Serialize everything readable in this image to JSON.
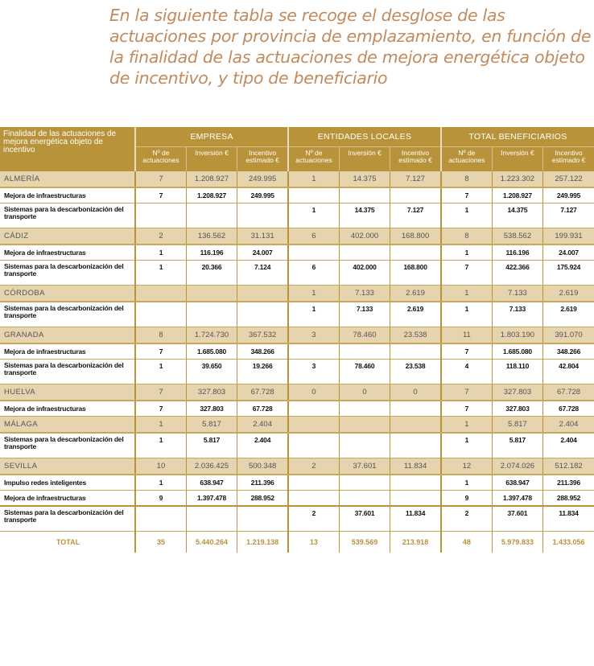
{
  "intro_text": "En la siguiente tabla se recoge el desglose de las actuaciones por provincia de emplazamiento, en función de la finalidad de las actuaciones de mejora energética objeto de incentivo, y tipo de beneficiario",
  "colors": {
    "header": "#b8933a",
    "province_row": "#e5d4ae",
    "intro_text": "#c38a5c",
    "total_text": "#b8933a"
  },
  "table": {
    "first_header": "Finalidad de las actuaciones de mejora energética objeto de incentivo",
    "groups": [
      "EMPRESA",
      "ENTIDADES LOCALES",
      "TOTAL BENEFICIARIOS"
    ],
    "sub_headers": [
      "Nº de actuaciones",
      "Inversión €",
      "Incentivo estimado €"
    ],
    "rows": [
      {
        "type": "prov",
        "label": "ALMERÍA",
        "v": [
          "7",
          "1.208.927",
          "249.995",
          "1",
          "14.375",
          "7.127",
          "8",
          "1.223.302",
          "257.122"
        ]
      },
      {
        "type": "item",
        "label": "Mejora de infraestructuras",
        "v": [
          "7",
          "1.208.927",
          "249.995",
          "",
          "",
          "",
          "7",
          "1.208.927",
          "249.995"
        ]
      },
      {
        "type": "item tall",
        "label": "Sistemas para la descarbonización del transporte",
        "v": [
          "",
          "",
          "",
          "1",
          "14.375",
          "7.127",
          "1",
          "14.375",
          "7.127"
        ]
      },
      {
        "type": "prov",
        "label": "CÁDIZ",
        "v": [
          "2",
          "136.562",
          "31.131",
          "6",
          "402.000",
          "168.800",
          "8",
          "538.562",
          "199.931"
        ]
      },
      {
        "type": "item",
        "label": "Mejora de infraestructuras",
        "v": [
          "1",
          "116.196",
          "24.007",
          "",
          "",
          "",
          "1",
          "116.196",
          "24.007"
        ]
      },
      {
        "type": "item tall",
        "label": "Sistemas para la descarbonización del transporte",
        "v": [
          "1",
          "20.366",
          "7.124",
          "6",
          "402.000",
          "168.800",
          "7",
          "422.366",
          "175.924"
        ]
      },
      {
        "type": "prov",
        "label": "CÓRDOBA",
        "v": [
          "",
          "",
          "",
          "1",
          "7.133",
          "2.619",
          "1",
          "7.133",
          "2.619"
        ]
      },
      {
        "type": "item tall",
        "label": "Sistemas para la descarbonización del transporte",
        "v": [
          "",
          "",
          "",
          "1",
          "7.133",
          "2.619",
          "1",
          "7.133",
          "2.619"
        ]
      },
      {
        "type": "prov",
        "label": "GRANADA",
        "v": [
          "8",
          "1.724.730",
          "367.532",
          "3",
          "78.460",
          "23.538",
          "11",
          "1.803.190",
          "391.070"
        ]
      },
      {
        "type": "item",
        "label": "Mejora de infraestructuras",
        "v": [
          "7",
          "1.685.080",
          "348.266",
          "",
          "",
          "",
          "7",
          "1.685.080",
          "348.266"
        ]
      },
      {
        "type": "item tall",
        "label": "Sistemas para la descarbonización del transporte",
        "v": [
          "1",
          "39.650",
          "19.266",
          "3",
          "78.460",
          "23.538",
          "4",
          "118.110",
          "42.804"
        ]
      },
      {
        "type": "prov",
        "label": "HUELVA",
        "v": [
          "7",
          "327.803",
          "67.728",
          "0",
          "0",
          "0",
          "7",
          "327.803",
          "67.728"
        ]
      },
      {
        "type": "item",
        "label": "Mejora de infraestructuras",
        "v": [
          "7",
          "327.803",
          "67.728",
          "",
          "",
          "",
          "7",
          "327.803",
          "67.728"
        ]
      },
      {
        "type": "prov",
        "label": "MÁLAGA",
        "v": [
          "1",
          "5.817",
          "2.404",
          "",
          "",
          "",
          "1",
          "5.817",
          "2.404"
        ]
      },
      {
        "type": "item tall",
        "label": "Sistemas para la descarbonización del transporte",
        "v": [
          "1",
          "5.817",
          "2.404",
          "",
          "",
          "",
          "1",
          "5.817",
          "2.404"
        ]
      },
      {
        "type": "prov",
        "label": "SEVILLA",
        "v": [
          "10",
          "2.036.425",
          "500.348",
          "2",
          "37.601",
          "11.834",
          "12",
          "2.074.026",
          "512.182"
        ]
      },
      {
        "type": "item",
        "label": "Impulso redes inteligentes",
        "v": [
          "1",
          "638.947",
          "211.396",
          "",
          "",
          "",
          "1",
          "638.947",
          "211.396"
        ]
      },
      {
        "type": "item sep",
        "label": "Mejora de infraestructuras",
        "v": [
          "9",
          "1.397.478",
          "288.952",
          "",
          "",
          "",
          "9",
          "1.397.478",
          "288.952"
        ]
      },
      {
        "type": "item tall",
        "label": "Sistemas para la descarbonización del transporte",
        "v": [
          "",
          "",
          "",
          "2",
          "37.601",
          "11.834",
          "2",
          "37.601",
          "11.834"
        ]
      },
      {
        "type": "total",
        "label": "TOTAL",
        "v": [
          "35",
          "5.440.264",
          "1.219.138",
          "13",
          "539.569",
          "213.918",
          "48",
          "5.979.833",
          "1.433.056"
        ]
      }
    ]
  }
}
